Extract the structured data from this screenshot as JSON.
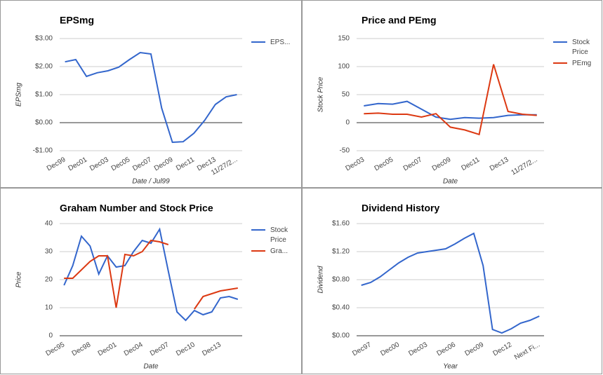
{
  "chart_data": [
    {
      "type": "line",
      "title": "EPSmg",
      "x_label": "Date / Jul99",
      "y_label": "EPSmg",
      "categories": [
        "Dec99",
        null,
        "Dec01",
        null,
        "Dec03",
        null,
        "Dec05",
        null,
        "Dec07",
        null,
        "Dec09",
        null,
        "Dec11",
        null,
        "Dec13",
        null,
        "11/27/2..."
      ],
      "series": [
        {
          "name": "EPS...",
          "color": "#3366cc",
          "values": [
            2.17,
            2.25,
            1.65,
            1.78,
            1.85,
            1.98,
            2.25,
            2.5,
            2.45,
            0.52,
            -0.7,
            -0.68,
            -0.38,
            0.08,
            0.65,
            0.92,
            1.0
          ]
        }
      ],
      "ylim": [
        -1,
        3
      ],
      "yticks": [
        {
          "value": -1,
          "label": "-$1.00"
        },
        {
          "value": 0,
          "label": "$0.00"
        },
        {
          "value": 1,
          "label": "$1.00"
        },
        {
          "value": 2,
          "label": "$2.00"
        },
        {
          "value": 3,
          "label": "$3.00"
        }
      ],
      "grid": true,
      "legend": "right"
    },
    {
      "type": "line",
      "title": "Price and PEmg",
      "x_label": "Date",
      "y_label": "Stock Price",
      "categories": [
        "Dec03",
        null,
        "Dec05",
        null,
        "Dec07",
        null,
        "Dec09",
        null,
        "Dec11",
        null,
        "Dec13",
        null,
        "11/27/2..."
      ],
      "series": [
        {
          "name": "Stock Price",
          "color": "#3366cc",
          "values": [
            30,
            34,
            33,
            38,
            24,
            10,
            6,
            9,
            8,
            9,
            13,
            14,
            14
          ]
        },
        {
          "name": "PEmg",
          "color": "#dc3912",
          "values": [
            16,
            17,
            15,
            15,
            10,
            16,
            -8,
            -13,
            -21,
            104,
            20,
            15,
            13
          ]
        }
      ],
      "ylim": [
        -50,
        150
      ],
      "yticks": [
        -50,
        0,
        50,
        100,
        150
      ],
      "grid": true,
      "legend": "right"
    },
    {
      "type": "line",
      "title": "Graham Number and Stock Price",
      "x_label": "Date",
      "y_label": "Price",
      "categories": [
        "Dec95",
        null,
        null,
        "Dec98",
        null,
        null,
        "Dec01",
        null,
        null,
        "Dec04",
        null,
        null,
        "Dec07",
        null,
        null,
        "Dec10",
        null,
        null,
        "Dec13",
        null,
        null
      ],
      "series": [
        {
          "name": "Stock Price",
          "color": "#3366cc",
          "values": [
            18,
            25,
            35.5,
            32,
            22,
            28.5,
            24.5,
            25,
            30,
            34,
            33,
            38,
            23,
            8.5,
            5.5,
            9,
            7.5,
            8.5,
            13.5,
            14,
            13
          ]
        },
        {
          "name": "Gra...",
          "color": "#dc3912",
          "values": [
            20.5,
            20.5,
            23.5,
            26.5,
            28.5,
            28.5,
            10,
            29,
            28.5,
            30,
            34,
            33.5,
            32.5,
            null,
            null,
            9.5,
            14,
            15,
            16,
            16.5,
            17
          ]
        }
      ],
      "ylim": [
        0,
        40
      ],
      "yticks": [
        0,
        10,
        20,
        30,
        40
      ],
      "grid": true,
      "legend": "right"
    },
    {
      "type": "line",
      "title": "Dividend History",
      "x_label": "Year",
      "y_label": "Dividend",
      "categories": [
        null,
        "Dec97",
        null,
        null,
        "Dec00",
        null,
        null,
        "Dec03",
        null,
        null,
        "Dec06",
        null,
        null,
        "Dec09",
        null,
        null,
        "Dec12",
        null,
        null,
        "Next Fi..."
      ],
      "series": [
        {
          "color": "#3366cc",
          "values": [
            0.72,
            0.76,
            0.84,
            0.94,
            1.04,
            1.12,
            1.18,
            1.2,
            1.22,
            1.24,
            1.31,
            1.39,
            1.46,
            1.0,
            0.09,
            0.04,
            0.1,
            0.18,
            0.22,
            0.28
          ]
        }
      ],
      "ylim": [
        0,
        1.6
      ],
      "yticks": [
        {
          "value": 0,
          "label": "$0.00"
        },
        {
          "value": 0.4,
          "label": "$0.40"
        },
        {
          "value": 0.8,
          "label": "$0.80"
        },
        {
          "value": 1.2,
          "label": "$1.20"
        },
        {
          "value": 1.6,
          "label": "$1.60"
        }
      ],
      "grid": true
    }
  ]
}
